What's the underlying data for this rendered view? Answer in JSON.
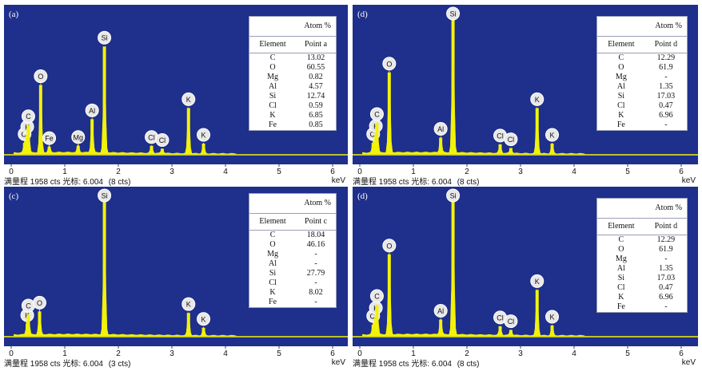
{
  "status_label": "满量程 1958 cts 光标: 6.004",
  "unit_label": "keV",
  "table_header": {
    "atom": "Atom %",
    "element": "Element"
  },
  "colors": {
    "background": "#1e2f8c",
    "spectrum": "#f2f20a",
    "label_fill": "#e8e8e8"
  },
  "chart_data": [
    {
      "type": "bar",
      "panel_label": "(a)",
      "cursor_counts": "(8 cts)",
      "x_ticks": [
        "0",
        "1",
        "2",
        "3",
        "4",
        "5",
        "6"
      ],
      "xlim": [
        0,
        6.4
      ],
      "ylim": [
        0,
        1958
      ],
      "peaks": [
        {
          "element": "Cl",
          "x": 0.25,
          "y": 150
        },
        {
          "element": "K",
          "x": 0.3,
          "y": 250
        },
        {
          "element": "C",
          "x": 0.32,
          "y": 390
        },
        {
          "element": "O",
          "x": 0.55,
          "y": 930
        },
        {
          "element": "Fe",
          "x": 0.71,
          "y": 95
        },
        {
          "element": "Mg",
          "x": 1.25,
          "y": 110
        },
        {
          "element": "Al",
          "x": 1.51,
          "y": 470
        },
        {
          "element": "Si",
          "x": 1.74,
          "y": 1450
        },
        {
          "element": "Cl",
          "x": 2.62,
          "y": 110
        },
        {
          "element": "Cl",
          "x": 2.82,
          "y": 70
        },
        {
          "element": "K",
          "x": 3.31,
          "y": 620
        },
        {
          "element": "K",
          "x": 3.59,
          "y": 140
        }
      ],
      "table": {
        "point_label": "Point a",
        "rows": [
          {
            "element": "C",
            "value": "13.02"
          },
          {
            "element": "O",
            "value": "60.55"
          },
          {
            "element": "Mg",
            "value": "0.82"
          },
          {
            "element": "Al",
            "value": "4.57"
          },
          {
            "element": "Si",
            "value": "12.74"
          },
          {
            "element": "Cl",
            "value": "0.59"
          },
          {
            "element": "K",
            "value": "6.85"
          },
          {
            "element": "Fe",
            "value": "0.85"
          }
        ]
      }
    },
    {
      "type": "bar",
      "panel_label": "(d)",
      "cursor_counts": "(8 cts)",
      "x_ticks": [
        "0",
        "1",
        "2",
        "3",
        "4",
        "5",
        "6"
      ],
      "xlim": [
        0,
        6.4
      ],
      "ylim": [
        0,
        1958
      ],
      "peaks": [
        {
          "element": "Cl",
          "x": 0.25,
          "y": 150
        },
        {
          "element": "K",
          "x": 0.3,
          "y": 260
        },
        {
          "element": "C",
          "x": 0.32,
          "y": 420
        },
        {
          "element": "O",
          "x": 0.55,
          "y": 1100
        },
        {
          "element": "Al",
          "x": 1.51,
          "y": 220
        },
        {
          "element": "Si",
          "x": 1.74,
          "y": 1958
        },
        {
          "element": "Cl",
          "x": 2.62,
          "y": 130
        },
        {
          "element": "Cl",
          "x": 2.82,
          "y": 80
        },
        {
          "element": "K",
          "x": 3.31,
          "y": 620
        },
        {
          "element": "K",
          "x": 3.59,
          "y": 140
        }
      ],
      "table": {
        "point_label": "Point d",
        "rows": [
          {
            "element": "C",
            "value": "12.29"
          },
          {
            "element": "O",
            "value": "61.9"
          },
          {
            "element": "Mg",
            "value": "-"
          },
          {
            "element": "Al",
            "value": "1.35"
          },
          {
            "element": "Si",
            "value": "17.03"
          },
          {
            "element": "Cl",
            "value": "0.47"
          },
          {
            "element": "K",
            "value": "6.96"
          },
          {
            "element": "Fe",
            "value": "-"
          }
        ]
      }
    },
    {
      "type": "bar",
      "panel_label": "(c)",
      "cursor_counts": "(3 cts)",
      "x_ticks": [
        "0",
        "1",
        "2",
        "3",
        "4",
        "5",
        "6"
      ],
      "xlim": [
        0,
        6.4
      ],
      "ylim": [
        0,
        1958
      ],
      "peaks": [
        {
          "element": "K",
          "x": 0.3,
          "y": 160
        },
        {
          "element": "C",
          "x": 0.32,
          "y": 290
        },
        {
          "element": "O",
          "x": 0.53,
          "y": 330
        },
        {
          "element": "Si",
          "x": 1.74,
          "y": 1830
        },
        {
          "element": "K",
          "x": 3.31,
          "y": 310
        },
        {
          "element": "K",
          "x": 3.59,
          "y": 110
        }
      ],
      "table": {
        "point_label": "Point c",
        "rows": [
          {
            "element": "C",
            "value": "18.04"
          },
          {
            "element": "O",
            "value": "46.16"
          },
          {
            "element": "Mg",
            "value": "-"
          },
          {
            "element": "Al",
            "value": "-"
          },
          {
            "element": "Si",
            "value": "27.79"
          },
          {
            "element": "Cl",
            "value": "-"
          },
          {
            "element": "K",
            "value": "8.02"
          },
          {
            "element": "Fe",
            "value": "-"
          }
        ]
      }
    },
    {
      "type": "bar",
      "panel_label": "(d)",
      "cursor_counts": "(8 cts)",
      "x_ticks": [
        "0",
        "1",
        "2",
        "3",
        "4",
        "5",
        "6"
      ],
      "xlim": [
        0,
        6.4
      ],
      "ylim": [
        0,
        1958
      ],
      "peaks": [
        {
          "element": "Cl",
          "x": 0.25,
          "y": 150
        },
        {
          "element": "K",
          "x": 0.3,
          "y": 260
        },
        {
          "element": "C",
          "x": 0.32,
          "y": 420
        },
        {
          "element": "O",
          "x": 0.55,
          "y": 1100
        },
        {
          "element": "Al",
          "x": 1.51,
          "y": 220
        },
        {
          "element": "Si",
          "x": 1.74,
          "y": 1958
        },
        {
          "element": "Cl",
          "x": 2.62,
          "y": 130
        },
        {
          "element": "Cl",
          "x": 2.82,
          "y": 80
        },
        {
          "element": "K",
          "x": 3.31,
          "y": 620
        },
        {
          "element": "K",
          "x": 3.59,
          "y": 140
        }
      ],
      "table": {
        "point_label": "Point d",
        "rows": [
          {
            "element": "C",
            "value": "12.29"
          },
          {
            "element": "O",
            "value": "61.9"
          },
          {
            "element": "Mg",
            "value": "-"
          },
          {
            "element": "Al",
            "value": "1.35"
          },
          {
            "element": "Si",
            "value": "17.03"
          },
          {
            "element": "Cl",
            "value": "0.47"
          },
          {
            "element": "K",
            "value": "6.96"
          },
          {
            "element": "Fe",
            "value": "-"
          }
        ]
      }
    }
  ]
}
